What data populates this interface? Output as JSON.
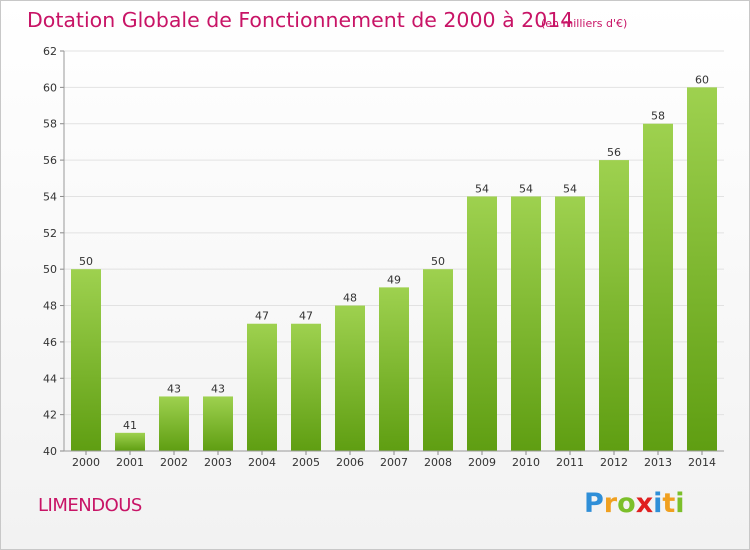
{
  "title": "Dotation Globale de Fonctionnement de 2000 à 2014",
  "unit_note": "(en milliers d'€)",
  "commune": "LIMENDOUS",
  "brand": {
    "text": "Proxiti",
    "letters": [
      {
        "ch": "P",
        "color": "#2f8fd8"
      },
      {
        "ch": "r",
        "color": "#f0a020"
      },
      {
        "ch": "o",
        "color": "#7cbf2a"
      },
      {
        "ch": "x",
        "color": "#e02020"
      },
      {
        "ch": "i",
        "color": "#2f8fd8"
      },
      {
        "ch": "t",
        "color": "#f0a020"
      },
      {
        "ch": "i",
        "color": "#7cbf2a"
      }
    ]
  },
  "colors": {
    "title": "#c81466",
    "bar_top": "#9ed14f",
    "bar_bottom": "#5f9e12",
    "grid": "#e2e2e2"
  },
  "chart_data": {
    "type": "bar",
    "categories": [
      "2000",
      "2001",
      "2002",
      "2003",
      "2004",
      "2005",
      "2006",
      "2007",
      "2008",
      "2009",
      "2010",
      "2011",
      "2012",
      "2013",
      "2014"
    ],
    "values": [
      50,
      41,
      43,
      43,
      47,
      47,
      48,
      49,
      50,
      54,
      54,
      54,
      56,
      58,
      60
    ],
    "ylim": [
      40,
      62
    ],
    "yticks": [
      40,
      42,
      44,
      46,
      48,
      50,
      52,
      54,
      56,
      58,
      60,
      62
    ],
    "grid": true,
    "data_labels": true
  }
}
